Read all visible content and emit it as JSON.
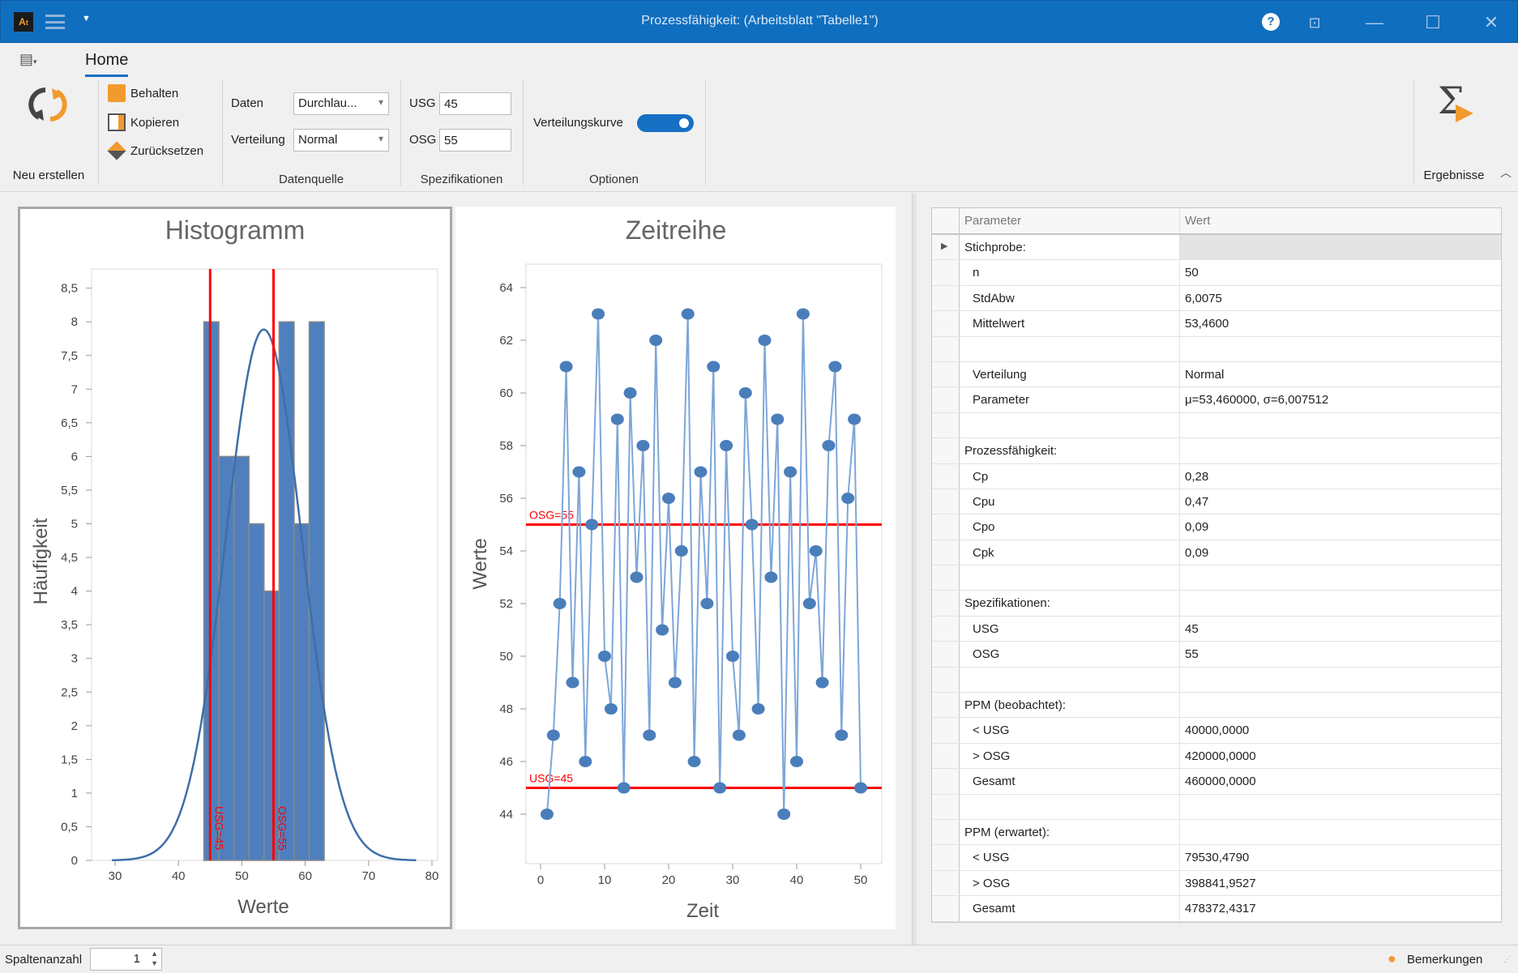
{
  "window": {
    "title": "Prozessfähigkeit:  (Arbeitsblatt \"Tabelle1\")",
    "app_logo": "At"
  },
  "ribbon": {
    "tab": "Home",
    "new_label": "Neu erstellen",
    "keep_label": "Behalten",
    "copy_label": "Kopieren",
    "reset_label": "Zurücksetzen",
    "data_label": "Daten",
    "data_value": "Durchlau...",
    "dist_label": "Verteilung",
    "dist_value": "Normal",
    "group_source": "Datenquelle",
    "usg_label": "USG",
    "usg_value": "45",
    "osg_label": "OSG",
    "osg_value": "55",
    "group_spec": "Spezifikationen",
    "curve_label": "Verteilungskurve",
    "curve_on": true,
    "group_options": "Optionen",
    "results_label": "Ergebnisse"
  },
  "colors": {
    "titlebar": "#106ebe",
    "bar": "#4f7fbc",
    "limit": "#ff0000",
    "point": "#4a7ebb"
  },
  "chart_data": [
    {
      "type": "bar",
      "title": "Histogramm",
      "xlabel": "Werte",
      "ylabel": "Häufigkeit",
      "bin_edges": [
        44,
        46.375,
        48.75,
        51.125,
        53.5,
        55.875,
        58.25,
        60.625,
        63
      ],
      "values": [
        8,
        6,
        6,
        5,
        4,
        8,
        5,
        8
      ],
      "xlim": [
        26,
        82
      ],
      "ylim": [
        0,
        8.8
      ],
      "xticks": [
        30,
        40,
        50,
        60,
        70,
        80
      ],
      "yticks": [
        "0",
        "0,5",
        "1",
        "1,5",
        "2",
        "2,5",
        "3",
        "3,5",
        "4",
        "4,5",
        "5",
        "5,5",
        "6",
        "6,5",
        "7",
        "7,5",
        "8",
        "8,5"
      ],
      "curve": {
        "type": "normal",
        "mu": 53.46,
        "sigma": 6.007512
      },
      "limits": [
        {
          "value": 45,
          "label": "USG=45"
        },
        {
          "value": 55,
          "label": "OSG=55"
        }
      ]
    },
    {
      "type": "line",
      "title": "Zeitreihe",
      "xlabel": "Zeit",
      "ylabel": "Werte",
      "x_start": 1,
      "values": [
        44,
        47,
        52,
        61,
        49,
        57,
        46,
        55,
        63,
        50,
        48,
        59,
        45,
        60,
        53,
        58,
        47,
        62,
        51,
        56,
        49,
        54,
        63,
        46,
        57,
        52,
        61,
        45,
        58,
        50,
        47,
        60,
        55,
        48,
        62,
        53,
        59,
        44,
        57,
        46,
        63,
        52,
        54,
        49,
        58,
        61,
        47,
        56,
        59,
        45
      ],
      "xlim": [
        -2,
        53
      ],
      "ylim": [
        42.5,
        64.8
      ],
      "xticks": [
        0,
        10,
        20,
        30,
        40,
        50
      ],
      "yticks": [
        44,
        46,
        48,
        50,
        52,
        54,
        56,
        58,
        60,
        62,
        64
      ],
      "limits": [
        {
          "value": 55,
          "label": "OSG=55"
        },
        {
          "value": 45,
          "label": "USG=45"
        }
      ]
    }
  ],
  "results": {
    "headers": [
      "Parameter",
      "Wert"
    ],
    "rows": [
      {
        "p": "Stichprobe:",
        "v": "",
        "group": true,
        "expander": true
      },
      {
        "p": "n",
        "v": "50"
      },
      {
        "p": "StdAbw",
        "v": "6,0075"
      },
      {
        "p": "Mittelwert",
        "v": "53,4600"
      },
      {
        "p": "",
        "v": ""
      },
      {
        "p": "Verteilung",
        "v": "Normal"
      },
      {
        "p": "Parameter",
        "v": "μ=53,460000, σ=6,007512"
      },
      {
        "p": "",
        "v": ""
      },
      {
        "p": "Prozessfähigkeit:",
        "v": "",
        "group": true
      },
      {
        "p": "Cp",
        "v": "0,28"
      },
      {
        "p": "Cpu",
        "v": "0,47"
      },
      {
        "p": "Cpo",
        "v": "0,09"
      },
      {
        "p": "Cpk",
        "v": "0,09"
      },
      {
        "p": "",
        "v": ""
      },
      {
        "p": "Spezifikationen:",
        "v": "",
        "group": true
      },
      {
        "p": "USG",
        "v": "45"
      },
      {
        "p": "OSG",
        "v": "55"
      },
      {
        "p": "",
        "v": ""
      },
      {
        "p": "PPM (beobachtet):",
        "v": "",
        "group": true
      },
      {
        "p": "< USG",
        "v": "40000,0000"
      },
      {
        "p": "> OSG",
        "v": "420000,0000"
      },
      {
        "p": "Gesamt",
        "v": "460000,0000"
      },
      {
        "p": "",
        "v": ""
      },
      {
        "p": "PPM (erwartet):",
        "v": "",
        "group": true
      },
      {
        "p": "< USG",
        "v": "79530,4790"
      },
      {
        "p": "> OSG",
        "v": "398841,9527"
      },
      {
        "p": "Gesamt",
        "v": "478372,4317"
      }
    ]
  },
  "status": {
    "columns_label": "Spaltenanzahl",
    "columns_value": "1",
    "remarks_label": "Bemerkungen"
  }
}
